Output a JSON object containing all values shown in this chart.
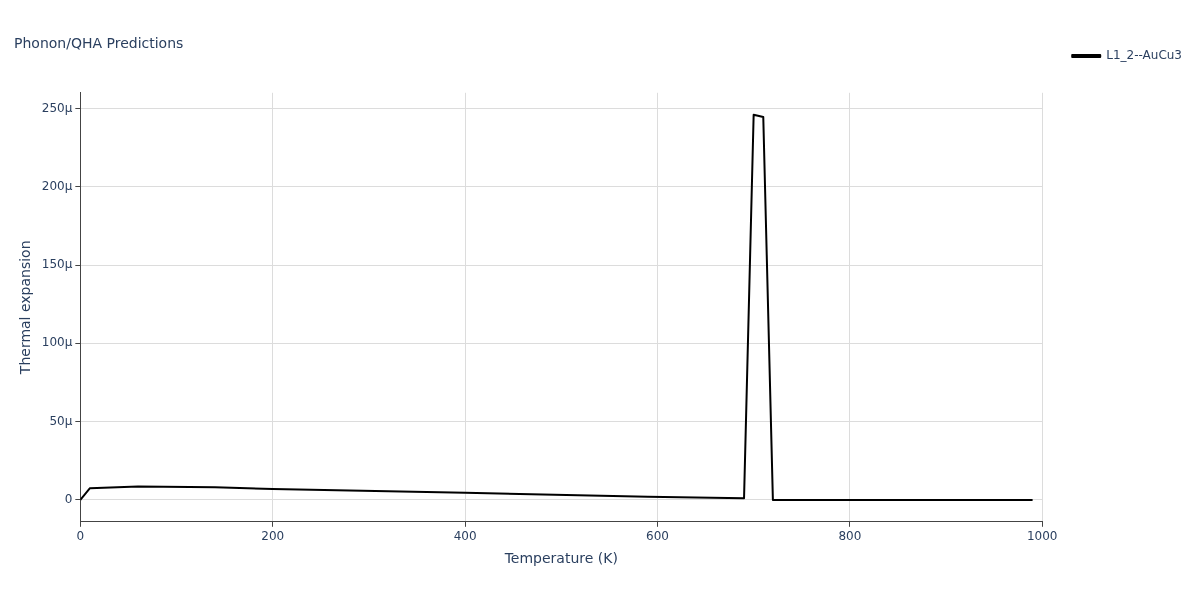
{
  "chart_data": {
    "type": "line",
    "title": "Phonon/QHA Predictions",
    "xlabel": "Temperature (K)",
    "ylabel": "Thermal expansion",
    "xlim": [
      0,
      1000
    ],
    "xticks": [
      0,
      200,
      400,
      600,
      800,
      1000
    ],
    "ylim": [
      -14,
      260
    ],
    "yticks": [
      0,
      {
        "value": 50,
        "label": "50µ"
      },
      {
        "value": 100,
        "label": "100µ"
      },
      {
        "value": 150,
        "label": "150µ"
      },
      {
        "value": 200,
        "label": "200µ"
      },
      {
        "value": 250,
        "label": "250µ"
      }
    ],
    "grid": true,
    "legend": "top right",
    "marker": "none",
    "line_style": "solid",
    "series": [
      {
        "name": "L1_2--AuCu3",
        "color": "#000000",
        "x": [
          0,
          10,
          60,
          140,
          200,
          400,
          590,
          690,
          700,
          710,
          720,
          990
        ],
        "values": [
          0,
          7.5,
          8.5,
          8,
          7,
          4.5,
          2,
          1,
          246,
          244.5,
          0,
          0
        ]
      }
    ]
  }
}
